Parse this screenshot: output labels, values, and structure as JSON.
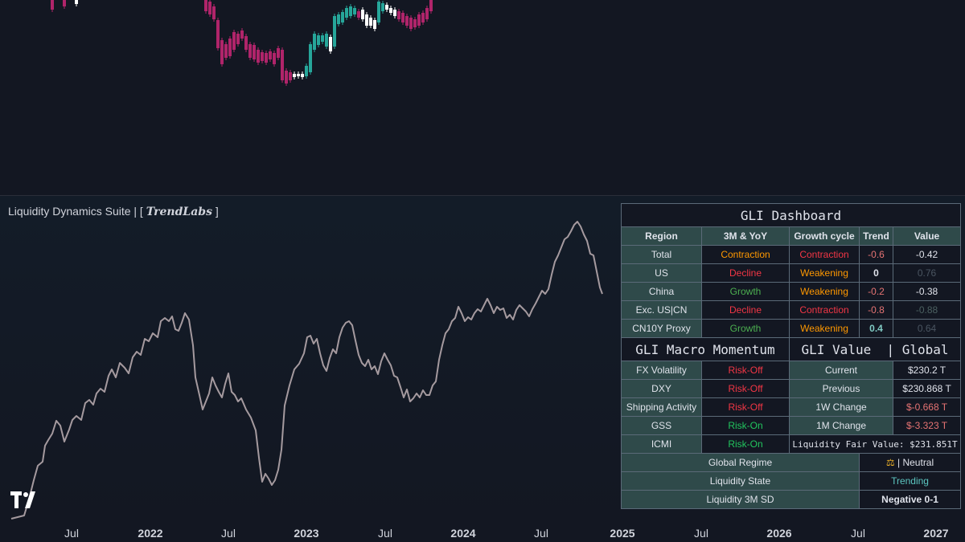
{
  "indicator": {
    "title_main": "Liquidity Dynamics Suite | [",
    "title_brand": "TrendLabs",
    "title_end": "]"
  },
  "x_axis": {
    "labels": [
      {
        "text": "Jul",
        "year": false
      },
      {
        "text": "2022",
        "year": true
      },
      {
        "text": "Jul",
        "year": false
      },
      {
        "text": "2023",
        "year": true
      },
      {
        "text": "Jul",
        "year": false
      },
      {
        "text": "2024",
        "year": true
      },
      {
        "text": "Jul",
        "year": false
      },
      {
        "text": "2025",
        "year": true
      },
      {
        "text": "Jul",
        "year": false
      },
      {
        "text": "2026",
        "year": true
      },
      {
        "text": "Jul",
        "year": false
      },
      {
        "text": "2027",
        "year": true
      }
    ]
  },
  "colors": {
    "line": "#a59a9f",
    "candle_up": "#26a69a",
    "candle_down": "#b0246a",
    "candle_neutral": "#ffffff"
  },
  "dashboard": {
    "title": "GLI Dashboard",
    "headers": [
      "Region",
      "3M & YoY",
      "Growth cycle",
      "Trend",
      "Value"
    ],
    "rows": [
      {
        "region": "Total",
        "yoy": "Contraction",
        "cycle": "Contraction",
        "trend": "-0.6",
        "value": "-0.42"
      },
      {
        "region": "US",
        "yoy": "Decline",
        "cycle": "Weakening",
        "trend": "0",
        "value": "0.76"
      },
      {
        "region": "China",
        "yoy": "Growth",
        "cycle": "Weakening",
        "trend": "-0.2",
        "value": "-0.38"
      },
      {
        "region": "Exc. US|CN",
        "yoy": "Decline",
        "cycle": "Contraction",
        "trend": "-0.8",
        "value": "-0.88"
      },
      {
        "region": "CN10Y Proxy",
        "yoy": "Growth",
        "cycle": "Weakening",
        "trend": "0.4",
        "value": "0.64"
      }
    ],
    "momentum_title": "GLI Macro Momentum",
    "value_title": "GLI Value  | Global",
    "momentum": [
      {
        "name": "FX Volatility",
        "state": "Risk-Off"
      },
      {
        "name": "DXY",
        "state": "Risk-Off"
      },
      {
        "name": "Shipping Activity",
        "state": "Risk-Off"
      },
      {
        "name": "GSS",
        "state": "Risk-On"
      },
      {
        "name": "ICMI",
        "state": "Risk-On"
      }
    ],
    "values": [
      {
        "name": "Current",
        "value": "$230.2 T"
      },
      {
        "name": "Previous",
        "value": "$230.868 T"
      },
      {
        "name": "1W Change",
        "value": "$-0.668 T"
      },
      {
        "name": "1M Change",
        "value": "$-3.323 T"
      }
    ],
    "fair_value": "Liquidity Fair Value: $231.851T",
    "regime_label": "Global Regime",
    "regime_icon": "scale-icon",
    "regime_value": "| Neutral",
    "state_label": "Liquidity State",
    "state_value": "Trending",
    "sd_label": "Liquidity 3M SD",
    "sd_value": "Negative 0-1"
  }
}
